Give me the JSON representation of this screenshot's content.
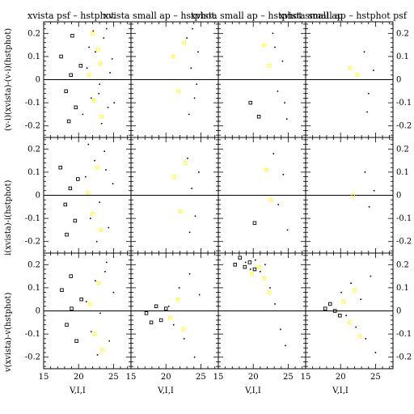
{
  "figure": {
    "panel_titles": [
      "xvista psf – hstphot",
      "xvista small ap – hstphot",
      "xvista small ap – hstphot small ap",
      "xvista small ap – hstphot psf"
    ],
    "row_ylabels": [
      "(v-i)(xvista)-(v-i)(hstphot)",
      "i(xvista)-i(hstphot)",
      "v(xvista)-v(hstphot)"
    ],
    "xlabel": "V,I,I",
    "colors": {
      "axes": "#000000",
      "points": "#000000",
      "highlight": "#ffff00",
      "background": "#ffffff"
    }
  },
  "chart_data": [
    {
      "type": "scatter",
      "panel": "r1c1",
      "xlabel": "",
      "ylabel": "(v-i)(xvista)-(v-i)(hstphot)",
      "xlim": [
        15,
        27.5
      ],
      "ylim": [
        -0.25,
        0.25
      ],
      "zero_line": 0,
      "y_ticks": [
        "-0.2",
        "-0.1",
        "0",
        "0.1",
        "0.2"
      ],
      "x_ticks": [],
      "series": [
        {
          "marker": "dot",
          "color": "#000000",
          "x": [
            21.2,
            21.8,
            22.4,
            23.0,
            23.6,
            24.2,
            24.8,
            20.6,
            22.1,
            23.3,
            24.5,
            21.5,
            22.9,
            24.0,
            25.1
          ],
          "y": [
            0.05,
            -0.08,
            0.12,
            -0.02,
            0.18,
            -0.12,
            0.09,
            -0.15,
            0.21,
            -0.19,
            0.03,
            0.14,
            -0.06,
            0.22,
            -0.1
          ]
        },
        {
          "marker": "open-square",
          "color": "#000000",
          "x": [
            17.5,
            18.2,
            18.9,
            19.6,
            20.3,
            19.1,
            18.6
          ],
          "y": [
            0.1,
            -0.05,
            0.02,
            -0.12,
            0.06,
            0.19,
            -0.18
          ]
        },
        {
          "marker": "open-square",
          "color": "#ffff00",
          "x": [
            21.5,
            22.2,
            22.8,
            23.3,
            22.0,
            23.1
          ],
          "y": [
            0.02,
            -0.09,
            0.13,
            -0.16,
            0.2,
            0.07
          ]
        }
      ]
    },
    {
      "type": "scatter",
      "panel": "r1c2",
      "xlim": [
        15,
        27.5
      ],
      "ylim": [
        -0.25,
        0.25
      ],
      "zero_line": 0,
      "series": [
        {
          "marker": "dot",
          "color": "#000000",
          "x": [
            23.0,
            23.6,
            24.1,
            24.6,
            23.3,
            24.4,
            23.8
          ],
          "y": [
            0.18,
            0.05,
            -0.08,
            0.12,
            -0.15,
            -0.02,
            0.22
          ]
        },
        {
          "marker": "open-square",
          "color": "#ffff00",
          "x": [
            21.0,
            21.8,
            22.6
          ],
          "y": [
            0.1,
            -0.05,
            0.16
          ]
        }
      ]
    },
    {
      "type": "scatter",
      "panel": "r1c3",
      "xlim": [
        15,
        27.5
      ],
      "ylim": [
        -0.25,
        0.25
      ],
      "zero_line": 0,
      "series": [
        {
          "marker": "dot",
          "color": "#000000",
          "x": [
            22.8,
            23.5,
            24.2,
            24.8,
            23.1,
            24.5
          ],
          "y": [
            0.2,
            -0.05,
            0.08,
            -0.17,
            0.14,
            -0.1
          ]
        },
        {
          "marker": "open-square",
          "color": "#ffff00",
          "x": [
            21.6,
            22.3
          ],
          "y": [
            0.15,
            0.06
          ]
        },
        {
          "marker": "open-square",
          "color": "#000000",
          "x": [
            19.6,
            20.8
          ],
          "y": [
            -0.1,
            -0.16
          ]
        }
      ]
    },
    {
      "type": "scatter",
      "panel": "r1c4",
      "xlim": [
        15,
        27.5
      ],
      "ylim": [
        -0.25,
        0.25
      ],
      "zero_line": 0,
      "series": [
        {
          "marker": "dot",
          "color": "#000000",
          "x": [
            23.4,
            24.0,
            24.7,
            23.8
          ],
          "y": [
            0.12,
            -0.06,
            0.04,
            -0.14
          ]
        },
        {
          "marker": "open-square",
          "color": "#ffff00",
          "x": [
            21.4,
            22.4
          ],
          "y": [
            0.05,
            0.02
          ]
        }
      ]
    },
    {
      "type": "scatter",
      "panel": "r2c1",
      "xlabel": "",
      "ylabel": "i(xvista)-i(hstphot)",
      "xlim": [
        15,
        27.5
      ],
      "ylim": [
        -0.25,
        0.25
      ],
      "zero_line": 0,
      "y_ticks": [
        "-0.2",
        "-0.1",
        "0",
        "0.1",
        "0.2"
      ],
      "series": [
        {
          "marker": "dot",
          "color": "#000000",
          "x": [
            21.0,
            21.7,
            22.3,
            23.0,
            23.7,
            24.3,
            24.9,
            22.6,
            23.9,
            21.4
          ],
          "y": [
            0.08,
            -0.1,
            0.15,
            -0.03,
            0.19,
            -0.14,
            0.05,
            -0.2,
            0.11,
            0.22
          ]
        },
        {
          "marker": "open-square",
          "color": "#000000",
          "x": [
            17.4,
            18.1,
            18.8,
            19.5,
            19.9,
            18.3
          ],
          "y": [
            0.12,
            -0.04,
            0.03,
            -0.11,
            0.07,
            -0.17
          ]
        },
        {
          "marker": "open-square",
          "color": "#ffff00",
          "x": [
            21.4,
            22.0,
            22.7,
            23.2
          ],
          "y": [
            0.01,
            -0.08,
            0.12,
            -0.15
          ]
        }
      ]
    },
    {
      "type": "scatter",
      "panel": "r2c2",
      "xlim": [
        15,
        27.5
      ],
      "ylim": [
        -0.25,
        0.25
      ],
      "zero_line": 0,
      "series": [
        {
          "marker": "dot",
          "color": "#000000",
          "x": [
            23.1,
            23.7,
            24.2,
            24.7,
            23.4
          ],
          "y": [
            0.16,
            0.03,
            -0.09,
            0.1,
            -0.16
          ]
        },
        {
          "marker": "open-square",
          "color": "#ffff00",
          "x": [
            21.2,
            22.1,
            22.8
          ],
          "y": [
            0.08,
            -0.07,
            0.14
          ]
        }
      ]
    },
    {
      "type": "scatter",
      "panel": "r2c3",
      "xlim": [
        15,
        27.5
      ],
      "ylim": [
        -0.25,
        0.25
      ],
      "zero_line": 0,
      "series": [
        {
          "marker": "dot",
          "color": "#000000",
          "x": [
            22.9,
            23.6,
            24.3,
            24.9
          ],
          "y": [
            0.18,
            -0.04,
            0.09,
            -0.15
          ]
        },
        {
          "marker": "open-square",
          "color": "#ffff00",
          "x": [
            21.8,
            22.5
          ],
          "y": [
            0.11,
            -0.02
          ]
        },
        {
          "marker": "open-square",
          "color": "#000000",
          "x": [
            20.2
          ],
          "y": [
            -0.12
          ]
        }
      ]
    },
    {
      "type": "scatter",
      "panel": "r2c4",
      "xlim": [
        15,
        27.5
      ],
      "ylim": [
        -0.25,
        0.25
      ],
      "zero_line": 0,
      "series": [
        {
          "marker": "dot",
          "color": "#000000",
          "x": [
            23.5,
            24.1,
            24.8
          ],
          "y": [
            0.1,
            -0.05,
            0.02
          ]
        },
        {
          "marker": "open-square",
          "color": "#ffff00",
          "x": [
            21.8
          ],
          "y": [
            0.0
          ]
        }
      ]
    },
    {
      "type": "scatter",
      "panel": "r3c1",
      "xlabel": "V,I,I",
      "ylabel": "v(xvista)-v(hstphot)",
      "xlim": [
        15,
        27.5
      ],
      "ylim": [
        -0.25,
        0.25
      ],
      "zero_line": 0,
      "y_ticks": [
        "-0.2",
        "-0.1",
        "0",
        "0.1",
        "0.2"
      ],
      "x_ticks": [
        "15",
        "20",
        "25"
      ],
      "series": [
        {
          "marker": "dot",
          "color": "#000000",
          "x": [
            21.1,
            21.8,
            22.4,
            23.1,
            23.8,
            24.4,
            25.0,
            22.7,
            24.0
          ],
          "y": [
            0.04,
            -0.09,
            0.13,
            -0.01,
            0.17,
            -0.13,
            0.08,
            -0.19,
            0.21
          ]
        },
        {
          "marker": "open-square",
          "color": "#000000",
          "x": [
            17.6,
            18.3,
            19.0,
            19.7,
            20.4,
            18.9
          ],
          "y": [
            0.09,
            -0.06,
            0.01,
            -0.13,
            0.05,
            0.15
          ]
        },
        {
          "marker": "open-square",
          "color": "#ffff00",
          "x": [
            21.6,
            22.3,
            22.9,
            23.4
          ],
          "y": [
            0.03,
            -0.1,
            0.12,
            -0.17
          ]
        }
      ]
    },
    {
      "type": "scatter",
      "panel": "r3c2",
      "xlabel": "V,I,I",
      "xlim": [
        15,
        27.5
      ],
      "ylim": [
        -0.25,
        0.25
      ],
      "zero_line": 0,
      "x_ticks": [
        "15",
        "20",
        "25"
      ],
      "series": [
        {
          "marker": "dot",
          "color": "#000000",
          "x": [
            20.4,
            21.1,
            21.9,
            22.6,
            23.4,
            24.1,
            24.8
          ],
          "y": [
            0.02,
            -0.06,
            0.1,
            -0.12,
            0.16,
            -0.2,
            0.07
          ]
        },
        {
          "marker": "open-square",
          "color": "#000000",
          "x": [
            17.2,
            17.9,
            18.6,
            19.3,
            20.0
          ],
          "y": [
            -0.01,
            -0.05,
            0.02,
            -0.04,
            0.01
          ]
        },
        {
          "marker": "open-square",
          "color": "#ffff00",
          "x": [
            20.6,
            21.7,
            22.5
          ],
          "y": [
            -0.03,
            0.05,
            -0.08
          ]
        }
      ]
    },
    {
      "type": "scatter",
      "panel": "r3c3",
      "xlabel": "V,I,I",
      "xlim": [
        15,
        27.5
      ],
      "ylim": [
        -0.25,
        0.25
      ],
      "zero_line": 0,
      "x_ticks": [
        "15",
        "20",
        "25"
      ],
      "series": [
        {
          "marker": "dot",
          "color": "#000000",
          "x": [
            18.9,
            19.6,
            20.3,
            21.0,
            21.7,
            22.4,
            23.1,
            23.9,
            24.6
          ],
          "y": [
            0.21,
            0.18,
            0.22,
            0.17,
            0.2,
            0.1,
            0.03,
            -0.08,
            -0.15
          ]
        },
        {
          "marker": "open-square",
          "color": "#000000",
          "x": [
            17.4,
            18.1,
            18.8,
            19.5,
            20.2
          ],
          "y": [
            0.2,
            0.23,
            0.19,
            0.21,
            0.18
          ]
        },
        {
          "marker": "open-square",
          "color": "#ffff00",
          "x": [
            19.8,
            20.9,
            21.6,
            22.3
          ],
          "y": [
            0.16,
            0.19,
            0.14,
            0.08
          ]
        }
      ]
    },
    {
      "type": "scatter",
      "panel": "r3c4",
      "xlabel": "V,I,I",
      "xlim": [
        15,
        27.5
      ],
      "ylim": [
        -0.25,
        0.25
      ],
      "zero_line": 0,
      "x_ticks": [
        "15",
        "20",
        "25"
      ],
      "series": [
        {
          "marker": "dot",
          "color": "#000000",
          "x": [
            20.1,
            20.8,
            21.5,
            22.2,
            22.9,
            23.6,
            24.3,
            25.0
          ],
          "y": [
            0.08,
            -0.02,
            0.12,
            -0.07,
            0.05,
            -0.12,
            0.15,
            -0.18
          ]
        },
        {
          "marker": "open-square",
          "color": "#000000",
          "x": [
            17.8,
            18.5,
            19.2,
            19.9
          ],
          "y": [
            0.01,
            0.03,
            0.0,
            -0.02
          ]
        },
        {
          "marker": "open-square",
          "color": "#ffff00",
          "x": [
            20.4,
            21.3,
            22.0,
            22.7
          ],
          "y": [
            0.04,
            -0.05,
            0.09,
            -0.11
          ]
        }
      ]
    }
  ]
}
